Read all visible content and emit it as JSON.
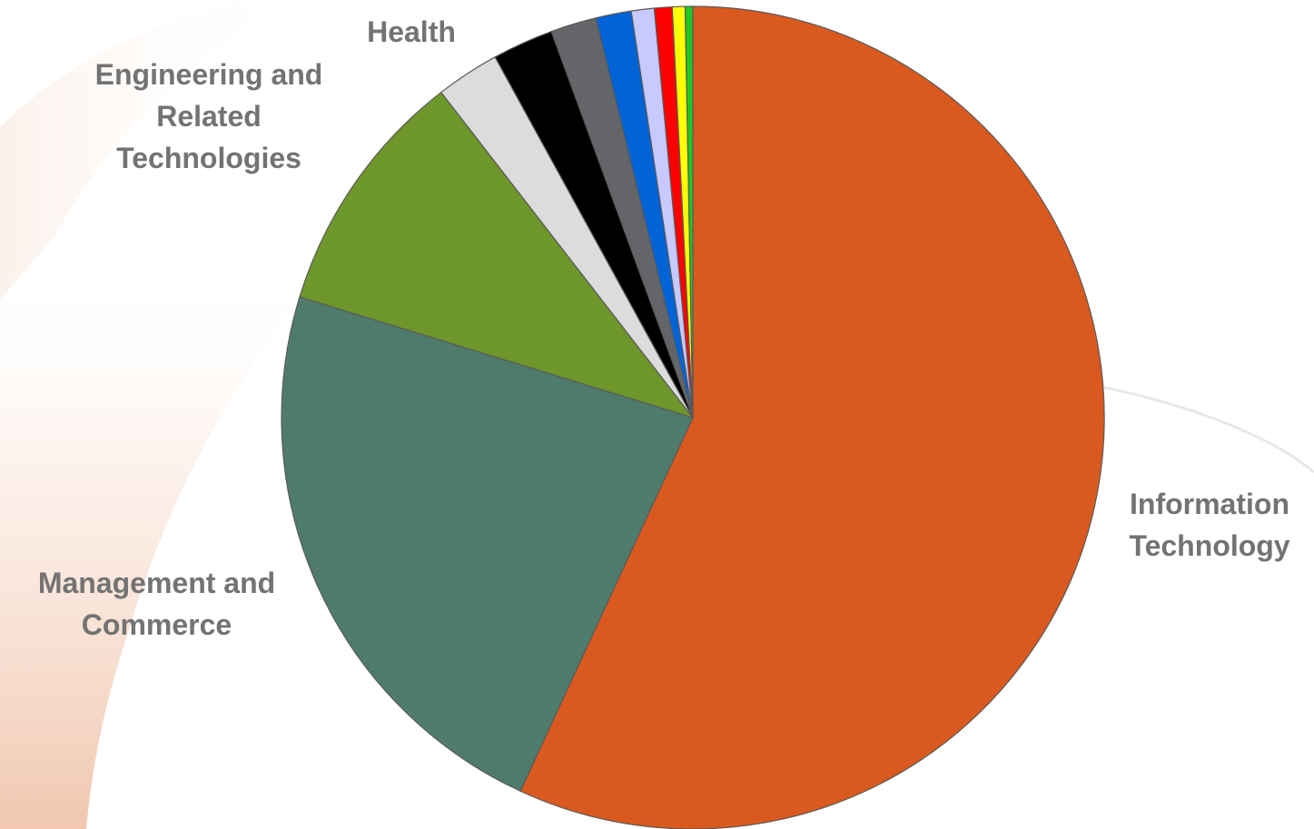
{
  "chart_data": {
    "type": "pie",
    "title": "",
    "start_angle_deg": 0,
    "direction": "clockwise",
    "slices": [
      {
        "label": "Information Technology",
        "value": 57.0,
        "color": "#DA591E"
      },
      {
        "label": "Management and Commerce",
        "value": 22.9,
        "color": "#4F7B6D"
      },
      {
        "label": "Engineering and Related Technologies",
        "value": 9.8,
        "color": "#6D962B"
      },
      {
        "label": "Health",
        "value": 2.5,
        "color": "#DCDCDC"
      },
      {
        "label": "",
        "value": 2.4,
        "color": "#000000"
      },
      {
        "label": "",
        "value": 1.8,
        "color": "#636569"
      },
      {
        "label": "",
        "value": 1.4,
        "color": "#0063D6"
      },
      {
        "label": "",
        "value": 0.9,
        "color": "#C7C9FF"
      },
      {
        "label": "",
        "value": 0.7,
        "color": "#FF0000"
      },
      {
        "label": "",
        "value": 0.5,
        "color": "#FFFF00"
      },
      {
        "label": "",
        "value": 0.3,
        "color": "#22C722"
      }
    ],
    "legend": "none",
    "data_labels": "category names outside slices"
  }
}
